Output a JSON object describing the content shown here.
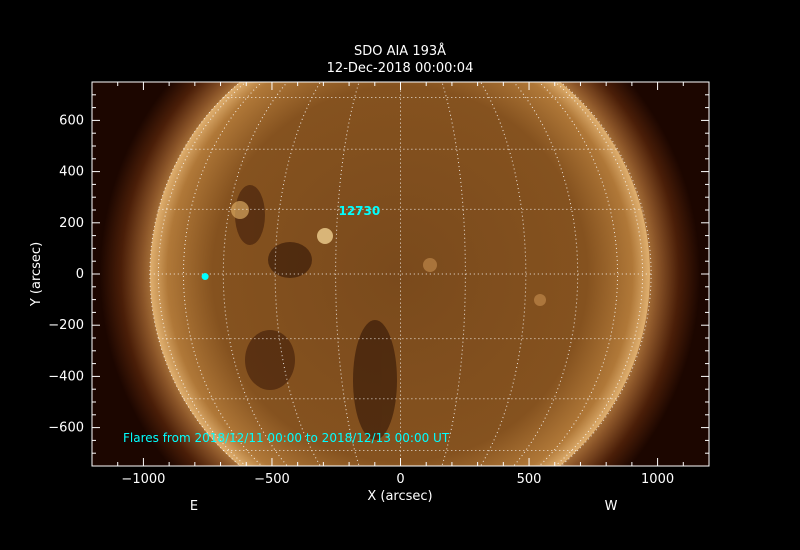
{
  "chart_data": {
    "type": "heatmap",
    "title": "SDO AIA 193Å",
    "subtitle": "12-Dec-2018 00:00:04",
    "xlabel": "X (arcsec)",
    "ylabel": "Y (arcsec)",
    "xlim": [
      -1200,
      1200
    ],
    "ylim": [
      -750,
      750
    ],
    "xticks": [
      -1000,
      -500,
      0,
      500,
      1000
    ],
    "yticks": [
      -600,
      -400,
      -200,
      0,
      200,
      400,
      600
    ],
    "solar_radius_arcsec": 975,
    "grid_spacing_deg": 15,
    "colormap": "sdoaia193",
    "east_label": "E",
    "west_label": "W",
    "active_regions": [
      {
        "label": "12730",
        "x": -160,
        "y": 230
      }
    ],
    "flares": [
      {
        "x": -760,
        "y": -10
      }
    ],
    "annotation": "Flares from 2018/12/11 00:00 to 2018/12/13 00:00 UT",
    "colors": {
      "annotation": "#00ffff",
      "disk": "#8a5420",
      "limb": "#e0b070",
      "background": "#1c0600"
    }
  }
}
